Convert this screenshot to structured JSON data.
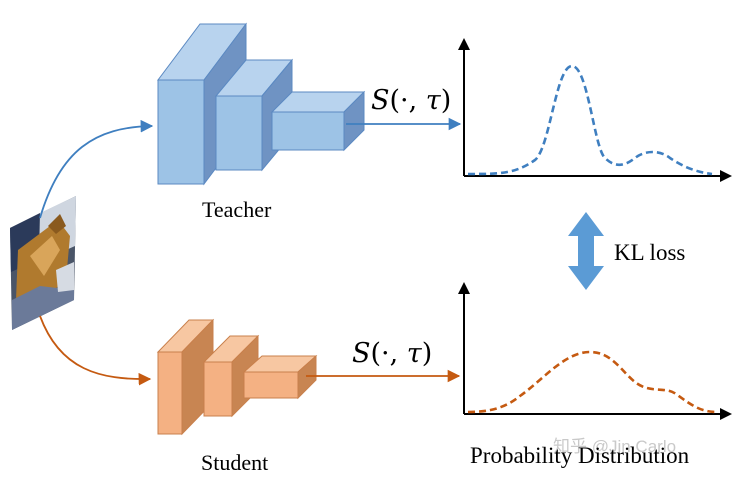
{
  "labels": {
    "teacher": "Teacher",
    "student": "Student",
    "kl_loss": "KL loss",
    "probability_distribution": "Probability Distribution",
    "watermark": "知乎 @Jin Carlo"
  },
  "softmax": {
    "symbol": "S",
    "args": "(·, τ)",
    "arg_open": "(·, ",
    "arg_tau": "τ",
    "arg_close": ")"
  },
  "colors": {
    "teacher_fill": "#9dc3e6",
    "teacher_stroke": "#5b89c2",
    "teacher_arrow": "#3f7fc0",
    "student_fill": "#f4b183",
    "student_stroke": "#c9804c",
    "student_arrow": "#c55a11",
    "kl_arrow": "#5b9bd5",
    "axis": "#000000"
  },
  "icons": {
    "input_image": "cat-photo-icon",
    "kl_arrow": "double-vertical-arrow-icon"
  },
  "curves": {
    "teacher": "bimodal: main peak, smaller secondary peak",
    "student": "broad: main hump, shoulder"
  }
}
